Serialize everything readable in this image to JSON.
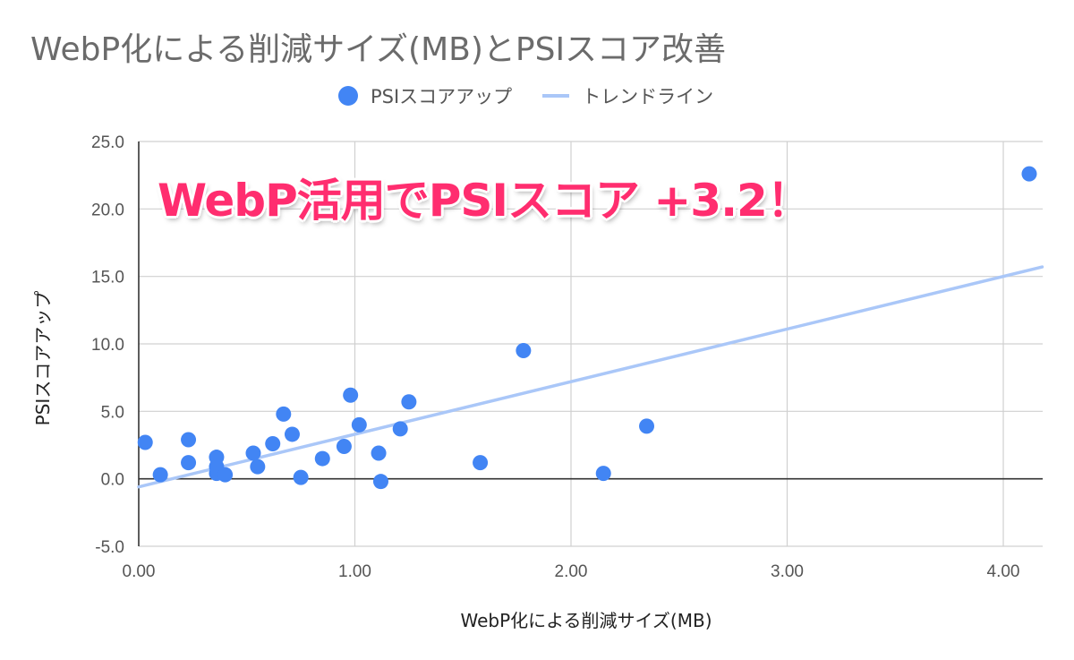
{
  "chart_data": {
    "type": "scatter",
    "title": "WebP化による削減サイズ(MB)とPSIスコア改善",
    "xlabel": "WebP化による削減サイズ(MB)",
    "ylabel": "PSIスコアアップ",
    "xlim": [
      0,
      4.18
    ],
    "ylim": [
      -5,
      25
    ],
    "x_ticks": [
      "0.00",
      "1.00",
      "2.00",
      "3.00",
      "4.00"
    ],
    "x_tick_values": [
      0,
      1,
      2,
      3,
      4
    ],
    "y_ticks": [
      "-5.0",
      "0.0",
      "5.0",
      "10.0",
      "15.0",
      "20.0",
      "25.0"
    ],
    "y_tick_values": [
      -5,
      0,
      5,
      10,
      15,
      20,
      25
    ],
    "grid": true,
    "legend_position": "top",
    "series": [
      {
        "name": "PSIスコアアップ",
        "color": "#4285f4",
        "points": [
          {
            "x": 0.03,
            "y": 2.7
          },
          {
            "x": 0.1,
            "y": 0.3
          },
          {
            "x": 0.23,
            "y": 2.9
          },
          {
            "x": 0.23,
            "y": 1.2
          },
          {
            "x": 0.36,
            "y": 1.6
          },
          {
            "x": 0.36,
            "y": 0.9
          },
          {
            "x": 0.36,
            "y": 0.4
          },
          {
            "x": 0.4,
            "y": 0.3
          },
          {
            "x": 0.53,
            "y": 1.9
          },
          {
            "x": 0.55,
            "y": 0.9
          },
          {
            "x": 0.62,
            "y": 2.6
          },
          {
            "x": 0.67,
            "y": 4.8
          },
          {
            "x": 0.71,
            "y": 3.3
          },
          {
            "x": 0.75,
            "y": 0.1
          },
          {
            "x": 0.85,
            "y": 1.5
          },
          {
            "x": 0.95,
            "y": 2.4
          },
          {
            "x": 0.98,
            "y": 6.2
          },
          {
            "x": 1.02,
            "y": 4.0
          },
          {
            "x": 1.11,
            "y": 1.9
          },
          {
            "x": 1.12,
            "y": -0.2
          },
          {
            "x": 1.21,
            "y": 3.7
          },
          {
            "x": 1.25,
            "y": 5.7
          },
          {
            "x": 1.58,
            "y": 1.2
          },
          {
            "x": 1.78,
            "y": 9.5
          },
          {
            "x": 2.15,
            "y": 0.4
          },
          {
            "x": 2.35,
            "y": 3.9
          },
          {
            "x": 4.12,
            "y": 22.6
          }
        ]
      },
      {
        "name": "トレンドライン",
        "type": "trendline",
        "color": "#aac7f8",
        "intercept": -0.6,
        "slope": 3.9
      }
    ]
  },
  "annotation": {
    "text": "WebP活用でPSIスコア +3.2！",
    "color": "#ff2d6f"
  }
}
